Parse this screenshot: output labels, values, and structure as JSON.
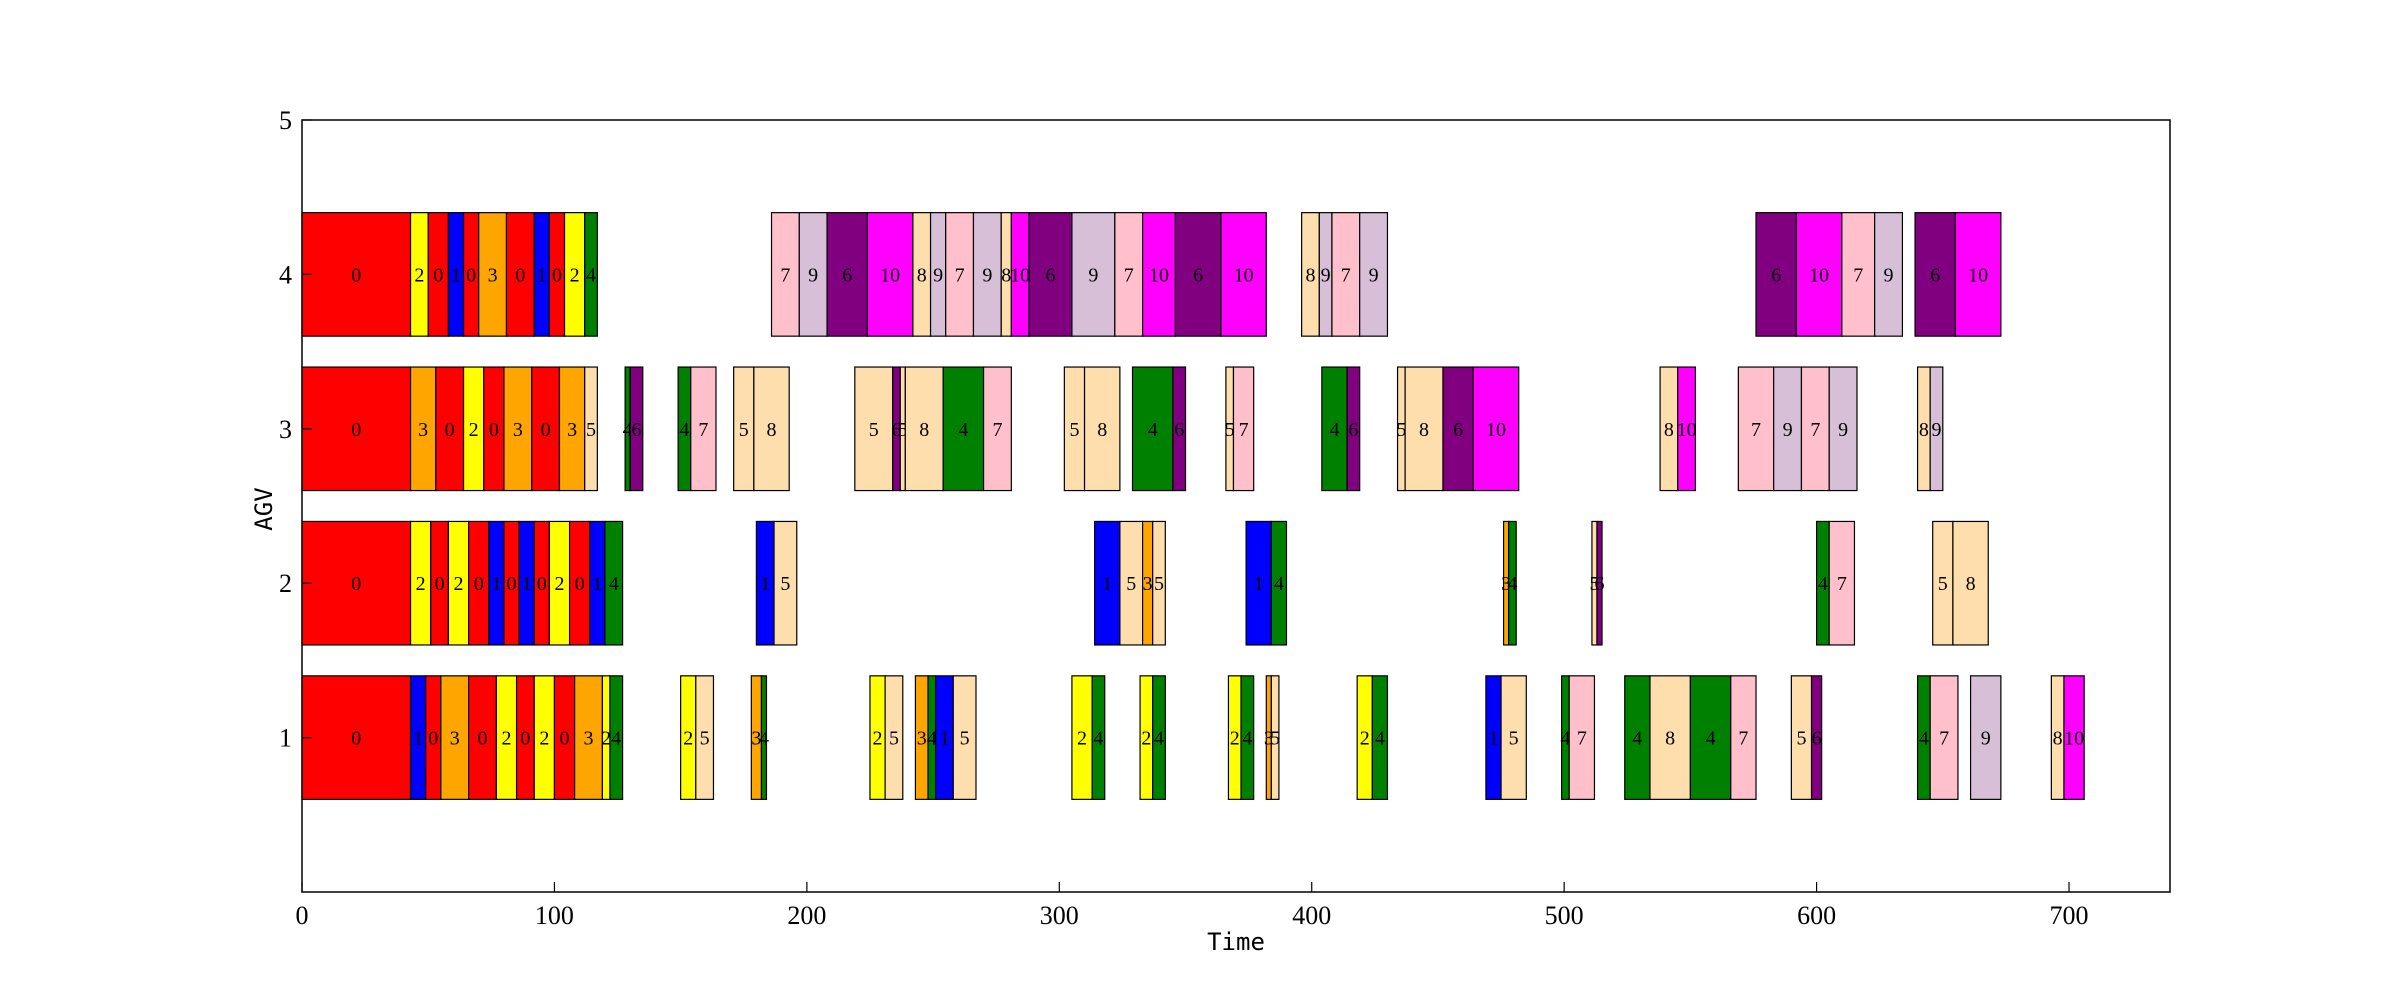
{
  "chart_data": {
    "type": "gantt",
    "title": "",
    "xlabel": "Time",
    "ylabel": "AGV",
    "xlim": [
      0,
      740
    ],
    "ylim": [
      0,
      5
    ],
    "xticks": [
      0,
      100,
      200,
      300,
      400,
      500,
      600,
      700
    ],
    "yticks": [
      1,
      2,
      3,
      4,
      5
    ],
    "grid": false,
    "colors": {
      "0": "#ff0000",
      "1": "#0000ff",
      "2": "#ffff00",
      "3": "#ffa500",
      "4": "#008000",
      "5": "#ffdead",
      "6": "#800080",
      "7": "#ffc0cb",
      "8": "#ffdead",
      "9": "#d8bfd8",
      "10": "#ff00ff"
    },
    "tasks": [
      {
        "agv": 1,
        "start": 0,
        "end": 43,
        "label": "0"
      },
      {
        "agv": 1,
        "start": 43,
        "end": 49,
        "label": "1"
      },
      {
        "agv": 1,
        "start": 49,
        "end": 55,
        "label": "0"
      },
      {
        "agv": 1,
        "start": 55,
        "end": 66,
        "label": "3"
      },
      {
        "agv": 1,
        "start": 66,
        "end": 77,
        "label": "0"
      },
      {
        "agv": 1,
        "start": 77,
        "end": 85,
        "label": "2"
      },
      {
        "agv": 1,
        "start": 85,
        "end": 92,
        "label": "0"
      },
      {
        "agv": 1,
        "start": 92,
        "end": 100,
        "label": "2"
      },
      {
        "agv": 1,
        "start": 100,
        "end": 108,
        "label": "0"
      },
      {
        "agv": 1,
        "start": 108,
        "end": 119,
        "label": "3"
      },
      {
        "agv": 1,
        "start": 119,
        "end": 122,
        "label": "2"
      },
      {
        "agv": 1,
        "start": 122,
        "end": 127,
        "label": "4"
      },
      {
        "agv": 1,
        "start": 150,
        "end": 156,
        "label": "2"
      },
      {
        "agv": 1,
        "start": 156,
        "end": 163,
        "label": "5"
      },
      {
        "agv": 1,
        "start": 178,
        "end": 182,
        "label": "3"
      },
      {
        "agv": 1,
        "start": 182,
        "end": 184,
        "label": "4"
      },
      {
        "agv": 1,
        "start": 225,
        "end": 231,
        "label": "2"
      },
      {
        "agv": 1,
        "start": 231,
        "end": 238,
        "label": "5"
      },
      {
        "agv": 1,
        "start": 243,
        "end": 248,
        "label": "3"
      },
      {
        "agv": 1,
        "start": 248,
        "end": 251,
        "label": "4"
      },
      {
        "agv": 1,
        "start": 251,
        "end": 258,
        "label": "1"
      },
      {
        "agv": 1,
        "start": 258,
        "end": 267,
        "label": "5"
      },
      {
        "agv": 1,
        "start": 305,
        "end": 313,
        "label": "2"
      },
      {
        "agv": 1,
        "start": 313,
        "end": 318,
        "label": "4"
      },
      {
        "agv": 1,
        "start": 332,
        "end": 337,
        "label": "2"
      },
      {
        "agv": 1,
        "start": 337,
        "end": 342,
        "label": "4"
      },
      {
        "agv": 1,
        "start": 367,
        "end": 372,
        "label": "2"
      },
      {
        "agv": 1,
        "start": 372,
        "end": 377,
        "label": "4"
      },
      {
        "agv": 1,
        "start": 382,
        "end": 384,
        "label": "3"
      },
      {
        "agv": 1,
        "start": 384,
        "end": 387,
        "label": "5"
      },
      {
        "agv": 1,
        "start": 418,
        "end": 424,
        "label": "2"
      },
      {
        "agv": 1,
        "start": 424,
        "end": 430,
        "label": "4"
      },
      {
        "agv": 1,
        "start": 469,
        "end": 475,
        "label": "1"
      },
      {
        "agv": 1,
        "start": 475,
        "end": 485,
        "label": "5"
      },
      {
        "agv": 1,
        "start": 499,
        "end": 502,
        "label": "4"
      },
      {
        "agv": 1,
        "start": 502,
        "end": 512,
        "label": "7"
      },
      {
        "agv": 1,
        "start": 524,
        "end": 534,
        "label": "4"
      },
      {
        "agv": 1,
        "start": 534,
        "end": 550,
        "label": "8"
      },
      {
        "agv": 1,
        "start": 550,
        "end": 566,
        "label": "4"
      },
      {
        "agv": 1,
        "start": 566,
        "end": 576,
        "label": "7"
      },
      {
        "agv": 1,
        "start": 590,
        "end": 598,
        "label": "5"
      },
      {
        "agv": 1,
        "start": 598,
        "end": 602,
        "label": "6"
      },
      {
        "agv": 1,
        "start": 640,
        "end": 645,
        "label": "4"
      },
      {
        "agv": 1,
        "start": 645,
        "end": 656,
        "label": "7"
      },
      {
        "agv": 1,
        "start": 661,
        "end": 673,
        "label": "9"
      },
      {
        "agv": 1,
        "start": 693,
        "end": 698,
        "label": "8"
      },
      {
        "agv": 1,
        "start": 698,
        "end": 706,
        "label": "10"
      },
      {
        "agv": 2,
        "start": 0,
        "end": 43,
        "label": "0"
      },
      {
        "agv": 2,
        "start": 43,
        "end": 51,
        "label": "2"
      },
      {
        "agv": 2,
        "start": 51,
        "end": 58,
        "label": "0"
      },
      {
        "agv": 2,
        "start": 58,
        "end": 66,
        "label": "2"
      },
      {
        "agv": 2,
        "start": 66,
        "end": 74,
        "label": "0"
      },
      {
        "agv": 2,
        "start": 74,
        "end": 80,
        "label": "1"
      },
      {
        "agv": 2,
        "start": 80,
        "end": 86,
        "label": "0"
      },
      {
        "agv": 2,
        "start": 86,
        "end": 92,
        "label": "1"
      },
      {
        "agv": 2,
        "start": 92,
        "end": 98,
        "label": "0"
      },
      {
        "agv": 2,
        "start": 98,
        "end": 106,
        "label": "2"
      },
      {
        "agv": 2,
        "start": 106,
        "end": 114,
        "label": "0"
      },
      {
        "agv": 2,
        "start": 114,
        "end": 120,
        "label": "1"
      },
      {
        "agv": 2,
        "start": 120,
        "end": 127,
        "label": "4"
      },
      {
        "agv": 2,
        "start": 180,
        "end": 187,
        "label": "1"
      },
      {
        "agv": 2,
        "start": 187,
        "end": 196,
        "label": "5"
      },
      {
        "agv": 2,
        "start": 314,
        "end": 324,
        "label": "1"
      },
      {
        "agv": 2,
        "start": 324,
        "end": 333,
        "label": "5"
      },
      {
        "agv": 2,
        "start": 333,
        "end": 337,
        "label": "3"
      },
      {
        "agv": 2,
        "start": 337,
        "end": 342,
        "label": "5"
      },
      {
        "agv": 2,
        "start": 374,
        "end": 384,
        "label": "1"
      },
      {
        "agv": 2,
        "start": 384,
        "end": 390,
        "label": "4"
      },
      {
        "agv": 2,
        "start": 476,
        "end": 478,
        "label": "3"
      },
      {
        "agv": 2,
        "start": 478,
        "end": 481,
        "label": "4"
      },
      {
        "agv": 2,
        "start": 511,
        "end": 513,
        "label": "5"
      },
      {
        "agv": 2,
        "start": 513,
        "end": 515,
        "label": "6"
      },
      {
        "agv": 2,
        "start": 600,
        "end": 605,
        "label": "4"
      },
      {
        "agv": 2,
        "start": 605,
        "end": 615,
        "label": "7"
      },
      {
        "agv": 2,
        "start": 646,
        "end": 654,
        "label": "5"
      },
      {
        "agv": 2,
        "start": 654,
        "end": 668,
        "label": "8"
      },
      {
        "agv": 3,
        "start": 0,
        "end": 43,
        "label": "0"
      },
      {
        "agv": 3,
        "start": 43,
        "end": 53,
        "label": "3"
      },
      {
        "agv": 3,
        "start": 53,
        "end": 64,
        "label": "0"
      },
      {
        "agv": 3,
        "start": 64,
        "end": 72,
        "label": "2"
      },
      {
        "agv": 3,
        "start": 72,
        "end": 80,
        "label": "0"
      },
      {
        "agv": 3,
        "start": 80,
        "end": 91,
        "label": "3"
      },
      {
        "agv": 3,
        "start": 91,
        "end": 102,
        "label": "0"
      },
      {
        "agv": 3,
        "start": 102,
        "end": 112,
        "label": "3"
      },
      {
        "agv": 3,
        "start": 112,
        "end": 117,
        "label": "5"
      },
      {
        "agv": 3,
        "start": 128,
        "end": 130,
        "label": "4"
      },
      {
        "agv": 3,
        "start": 130,
        "end": 135,
        "label": "6"
      },
      {
        "agv": 3,
        "start": 149,
        "end": 154,
        "label": "4"
      },
      {
        "agv": 3,
        "start": 154,
        "end": 164,
        "label": "7"
      },
      {
        "agv": 3,
        "start": 171,
        "end": 179,
        "label": "5"
      },
      {
        "agv": 3,
        "start": 179,
        "end": 193,
        "label": "8"
      },
      {
        "agv": 3,
        "start": 219,
        "end": 234,
        "label": "5"
      },
      {
        "agv": 3,
        "start": 234,
        "end": 237,
        "label": "6"
      },
      {
        "agv": 3,
        "start": 237,
        "end": 239,
        "label": "5"
      },
      {
        "agv": 3,
        "start": 239,
        "end": 254,
        "label": "8"
      },
      {
        "agv": 3,
        "start": 254,
        "end": 270,
        "label": "4"
      },
      {
        "agv": 3,
        "start": 270,
        "end": 281,
        "label": "7"
      },
      {
        "agv": 3,
        "start": 302,
        "end": 310,
        "label": "5"
      },
      {
        "agv": 3,
        "start": 310,
        "end": 324,
        "label": "8"
      },
      {
        "agv": 3,
        "start": 329,
        "end": 345,
        "label": "4"
      },
      {
        "agv": 3,
        "start": 345,
        "end": 350,
        "label": "6"
      },
      {
        "agv": 3,
        "start": 366,
        "end": 369,
        "label": "5"
      },
      {
        "agv": 3,
        "start": 369,
        "end": 377,
        "label": "7"
      },
      {
        "agv": 3,
        "start": 404,
        "end": 414,
        "label": "4"
      },
      {
        "agv": 3,
        "start": 414,
        "end": 419,
        "label": "6"
      },
      {
        "agv": 3,
        "start": 434,
        "end": 437,
        "label": "5"
      },
      {
        "agv": 3,
        "start": 437,
        "end": 452,
        "label": "8"
      },
      {
        "agv": 3,
        "start": 452,
        "end": 464,
        "label": "6"
      },
      {
        "agv": 3,
        "start": 464,
        "end": 482,
        "label": "10"
      },
      {
        "agv": 3,
        "start": 538,
        "end": 545,
        "label": "8"
      },
      {
        "agv": 3,
        "start": 545,
        "end": 552,
        "label": "10"
      },
      {
        "agv": 3,
        "start": 569,
        "end": 583,
        "label": "7"
      },
      {
        "agv": 3,
        "start": 583,
        "end": 594,
        "label": "9"
      },
      {
        "agv": 3,
        "start": 594,
        "end": 605,
        "label": "7"
      },
      {
        "agv": 3,
        "start": 605,
        "end": 616,
        "label": "9"
      },
      {
        "agv": 3,
        "start": 640,
        "end": 645,
        "label": "8"
      },
      {
        "agv": 3,
        "start": 645,
        "end": 650,
        "label": "9"
      },
      {
        "agv": 4,
        "start": 0,
        "end": 43,
        "label": "0"
      },
      {
        "agv": 4,
        "start": 43,
        "end": 50,
        "label": "2"
      },
      {
        "agv": 4,
        "start": 50,
        "end": 58,
        "label": "0"
      },
      {
        "agv": 4,
        "start": 58,
        "end": 64,
        "label": "1"
      },
      {
        "agv": 4,
        "start": 64,
        "end": 70,
        "label": "0"
      },
      {
        "agv": 4,
        "start": 70,
        "end": 81,
        "label": "3"
      },
      {
        "agv": 4,
        "start": 81,
        "end": 92,
        "label": "0"
      },
      {
        "agv": 4,
        "start": 92,
        "end": 98,
        "label": "1"
      },
      {
        "agv": 4,
        "start": 98,
        "end": 104,
        "label": "0"
      },
      {
        "agv": 4,
        "start": 104,
        "end": 112,
        "label": "2"
      },
      {
        "agv": 4,
        "start": 112,
        "end": 117,
        "label": "4"
      },
      {
        "agv": 4,
        "start": 186,
        "end": 197,
        "label": "7"
      },
      {
        "agv": 4,
        "start": 197,
        "end": 208,
        "label": "9"
      },
      {
        "agv": 4,
        "start": 208,
        "end": 224,
        "label": "6"
      },
      {
        "agv": 4,
        "start": 224,
        "end": 242,
        "label": "10"
      },
      {
        "agv": 4,
        "start": 242,
        "end": 249,
        "label": "8"
      },
      {
        "agv": 4,
        "start": 249,
        "end": 255,
        "label": "9"
      },
      {
        "agv": 4,
        "start": 255,
        "end": 266,
        "label": "7"
      },
      {
        "agv": 4,
        "start": 266,
        "end": 277,
        "label": "9"
      },
      {
        "agv": 4,
        "start": 277,
        "end": 281,
        "label": "8"
      },
      {
        "agv": 4,
        "start": 281,
        "end": 288,
        "label": "10"
      },
      {
        "agv": 4,
        "start": 288,
        "end": 305,
        "label": "6"
      },
      {
        "agv": 4,
        "start": 305,
        "end": 322,
        "label": "9"
      },
      {
        "agv": 4,
        "start": 322,
        "end": 333,
        "label": "7"
      },
      {
        "agv": 4,
        "start": 333,
        "end": 346,
        "label": "10"
      },
      {
        "agv": 4,
        "start": 346,
        "end": 364,
        "label": "6"
      },
      {
        "agv": 4,
        "start": 364,
        "end": 382,
        "label": "10"
      },
      {
        "agv": 4,
        "start": 396,
        "end": 403,
        "label": "8"
      },
      {
        "agv": 4,
        "start": 403,
        "end": 408,
        "label": "9"
      },
      {
        "agv": 4,
        "start": 408,
        "end": 419,
        "label": "7"
      },
      {
        "agv": 4,
        "start": 419,
        "end": 430,
        "label": "9"
      },
      {
        "agv": 4,
        "start": 576,
        "end": 592,
        "label": "6"
      },
      {
        "agv": 4,
        "start": 592,
        "end": 610,
        "label": "10"
      },
      {
        "agv": 4,
        "start": 610,
        "end": 623,
        "label": "7"
      },
      {
        "agv": 4,
        "start": 623,
        "end": 634,
        "label": "9"
      },
      {
        "agv": 4,
        "start": 639,
        "end": 655,
        "label": "6"
      },
      {
        "agv": 4,
        "start": 655,
        "end": 673,
        "label": "10"
      }
    ]
  }
}
